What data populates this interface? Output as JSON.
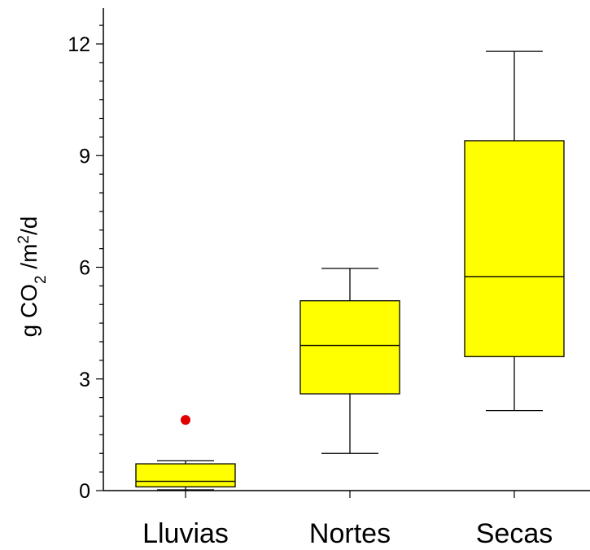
{
  "chart_data": {
    "type": "boxplot",
    "title": "",
    "xlabel": "",
    "ylabel": {
      "prefix": "g CO",
      "sub": "2",
      "middle": " /m",
      "sup": "2",
      "suffix": "/d"
    },
    "ylim": [
      0,
      13
    ],
    "yticks": [
      "0",
      "3",
      "6",
      "9",
      "12"
    ],
    "grid": false,
    "colors": {
      "box_fill": "#ffff00",
      "outlier": "#e00000",
      "line": "#000000"
    },
    "categories": [
      "Lluvias",
      "Nortes",
      "Secas"
    ],
    "boxes": [
      {
        "category": "Lluvias",
        "whisker_low": 0.02,
        "q1": 0.1,
        "median": 0.25,
        "q3": 0.72,
        "whisker_high": 0.8,
        "outliers": [
          1.9
        ]
      },
      {
        "category": "Nortes",
        "whisker_low": 1.0,
        "q1": 2.6,
        "median": 3.9,
        "q3": 5.1,
        "whisker_high": 5.97,
        "outliers": []
      },
      {
        "category": "Secas",
        "whisker_low": 2.15,
        "q1": 3.6,
        "median": 5.75,
        "q3": 9.4,
        "whisker_high": 11.8,
        "outliers": []
      }
    ]
  }
}
